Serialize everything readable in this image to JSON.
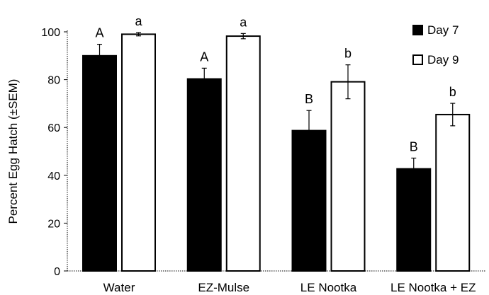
{
  "chart_data": {
    "type": "bar",
    "title": "",
    "xlabel": "",
    "ylabel": "Percent Egg Hatch (±SEM)",
    "ylim": [
      0,
      100
    ],
    "yticks": [
      0,
      20,
      40,
      60,
      80,
      100
    ],
    "grid": false,
    "legend": "top-right",
    "categories": [
      "Water",
      "EZ-Mulse",
      "LE Nootka",
      "LE Nootka + EZ"
    ],
    "series": [
      {
        "name": "Day 7",
        "color": "#000000",
        "values": [
          90,
          80.3,
          58.7,
          42.7
        ],
        "errors": [
          4.8,
          4.5,
          8.4,
          4.5
        ],
        "letters": [
          "A",
          "A",
          "B",
          "B"
        ]
      },
      {
        "name": "Day 9",
        "color": "#ffffff",
        "values": [
          99,
          98.2,
          79.1,
          65.4
        ],
        "errors": [
          0.7,
          1.1,
          7.1,
          4.7
        ],
        "letters": [
          "a",
          "a",
          "b",
          "b"
        ]
      }
    ]
  }
}
